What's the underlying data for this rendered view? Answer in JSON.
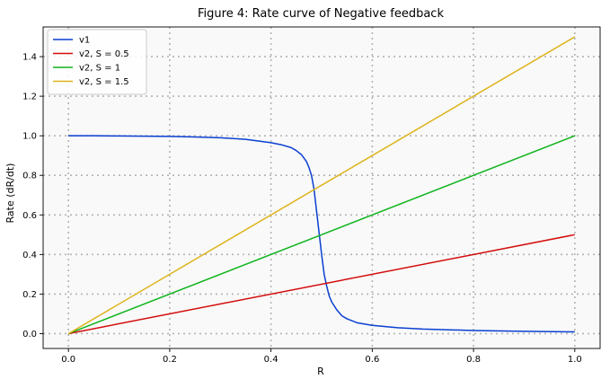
{
  "chart_data": {
    "type": "line",
    "title": "Figure 4: Rate curve of Negative feedback",
    "xlabel": "R",
    "ylabel": "Rate (dR/dt)",
    "xlim": [
      -0.05,
      1.05
    ],
    "ylim": [
      -0.075,
      1.55
    ],
    "xticks": [
      0.0,
      0.2,
      0.4,
      0.6,
      0.8,
      1.0
    ],
    "xtick_labels": [
      "0.0",
      "0.2",
      "0.4",
      "0.6",
      "0.8",
      "1.0"
    ],
    "yticks": [
      0.0,
      0.2,
      0.4,
      0.6,
      0.8,
      1.0,
      1.2,
      1.4
    ],
    "ytick_labels": [
      "0.0",
      "0.2",
      "0.4",
      "0.6",
      "0.8",
      "1.0",
      "1.2",
      "1.4"
    ],
    "grid": true,
    "legend_position": "top-left",
    "series": [
      {
        "name": "v1",
        "color": "#0a3fd1",
        "x": [
          0.0,
          0.05,
          0.1,
          0.15,
          0.2,
          0.25,
          0.3,
          0.35,
          0.4,
          0.42,
          0.44,
          0.45,
          0.46,
          0.47,
          0.475,
          0.48,
          0.485,
          0.49,
          0.495,
          0.5,
          0.505,
          0.51,
          0.515,
          0.52,
          0.53,
          0.54,
          0.55,
          0.57,
          0.6,
          0.65,
          0.7,
          0.8,
          0.9,
          1.0
        ],
        "values": [
          1.0,
          1.0,
          0.999,
          0.998,
          0.997,
          0.994,
          0.99,
          0.982,
          0.965,
          0.955,
          0.94,
          0.925,
          0.905,
          0.87,
          0.84,
          0.8,
          0.73,
          0.62,
          0.51,
          0.4,
          0.3,
          0.24,
          0.19,
          0.16,
          0.12,
          0.09,
          0.075,
          0.055,
          0.042,
          0.03,
          0.023,
          0.016,
          0.012,
          0.009
        ]
      },
      {
        "name": "v2, S = 0.5",
        "color": "#d40b0b",
        "x": [
          0.0,
          1.0
        ],
        "values": [
          0.0,
          0.5
        ]
      },
      {
        "name": "v2, S = 1",
        "color": "#10b41f",
        "x": [
          0.0,
          1.0
        ],
        "values": [
          0.0,
          1.0
        ]
      },
      {
        "name": "v2, S = 1.5",
        "color": "#deb31a",
        "x": [
          0.0,
          1.0
        ],
        "values": [
          0.0,
          1.5
        ]
      }
    ]
  }
}
